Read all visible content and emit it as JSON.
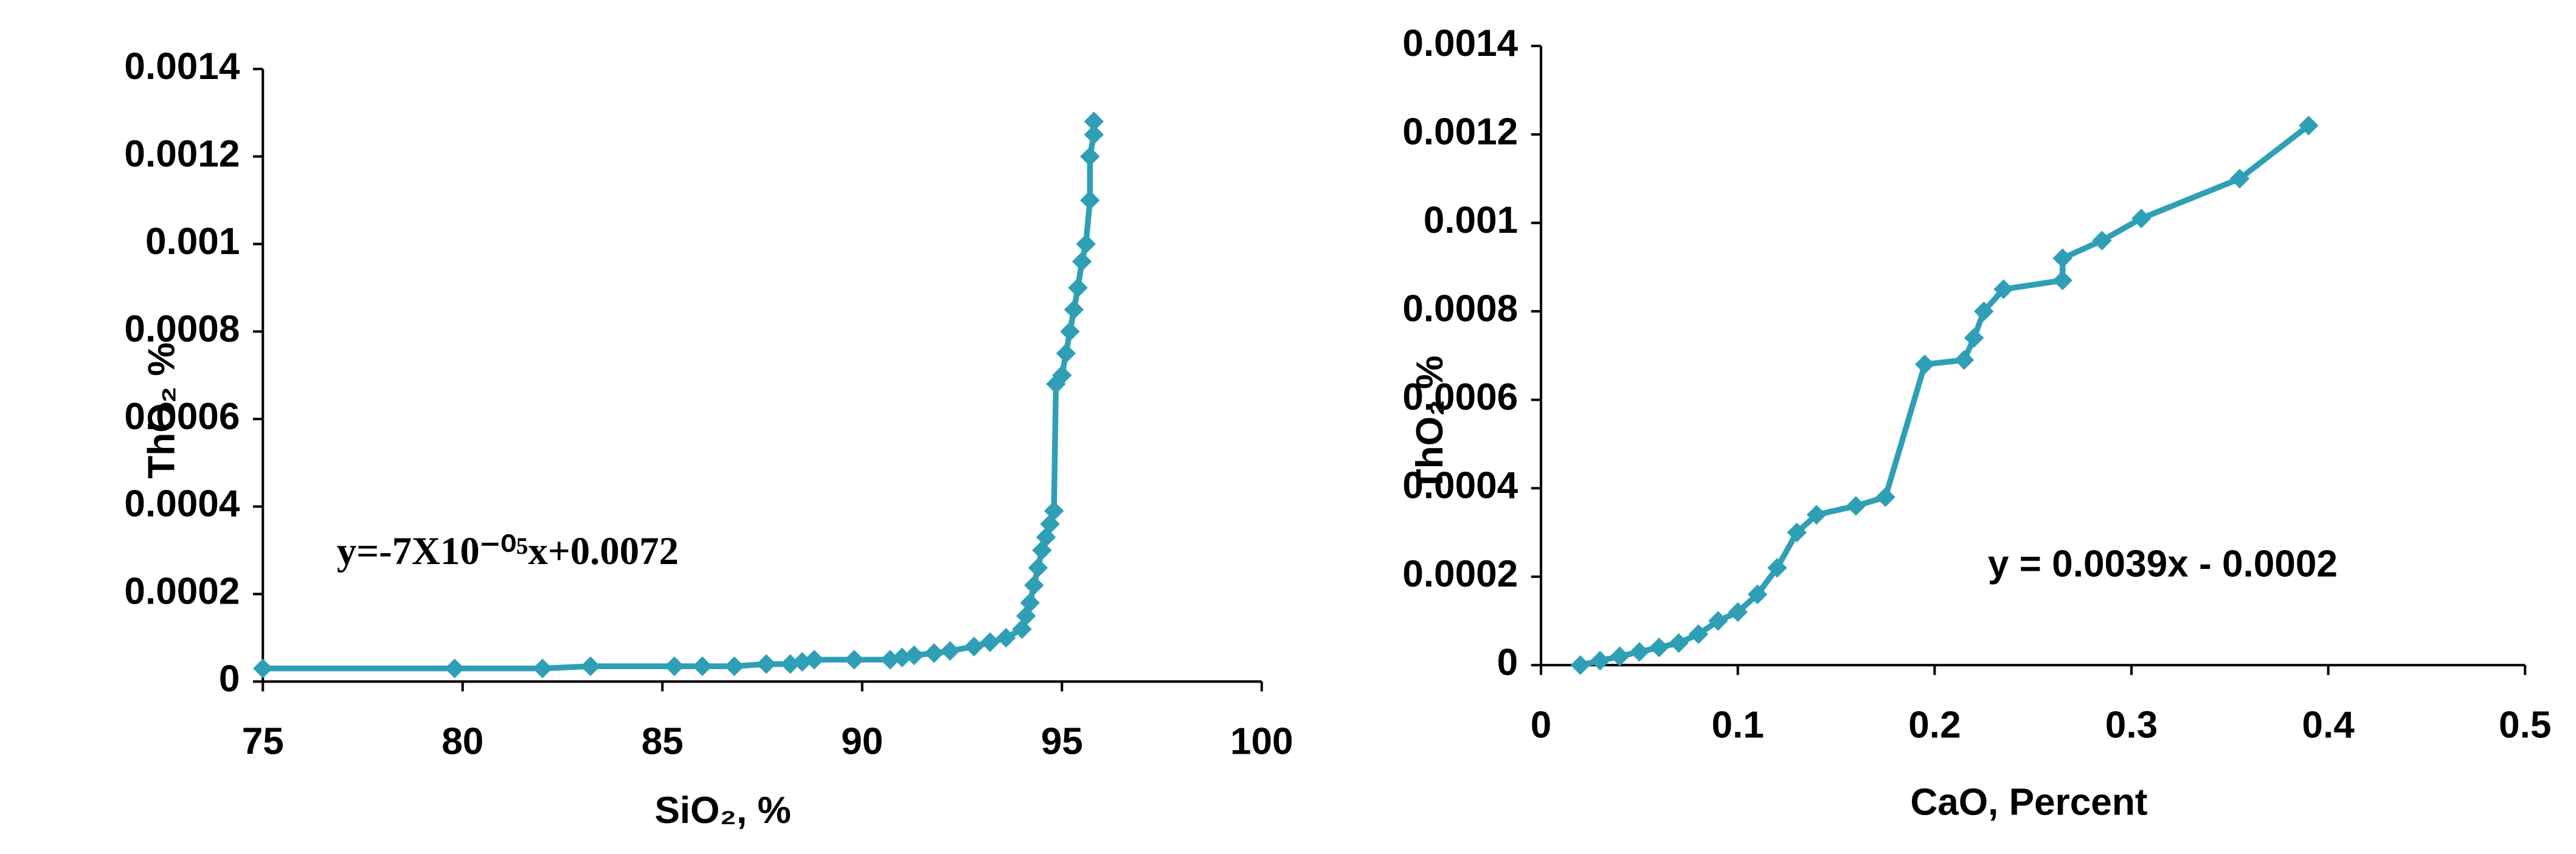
{
  "chart_data": [
    {
      "type": "line",
      "xlabel": "SiO₂, %",
      "ylabel": "ThO₂ %",
      "annotation": "y=-7X10⁻⁰⁵x+0.0072",
      "color": "#2f9fb6",
      "x": [
        75,
        79.8,
        82,
        83.2,
        85.3,
        86,
        86.8,
        87.6,
        88.2,
        88.5,
        88.8,
        89.8,
        90.7,
        91,
        91.3,
        91.8,
        92.2,
        92.8,
        93.2,
        93.6,
        94,
        94.1,
        94.2,
        94.3,
        94.4,
        94.5,
        94.6,
        94.7,
        94.8,
        94.85,
        95,
        95.1,
        95.2,
        95.3,
        95.4,
        95.5,
        95.6,
        95.7,
        95.7,
        95.8,
        95.8
      ],
      "values": [
        3e-05,
        3e-05,
        3e-05,
        3.5e-05,
        3.5e-05,
        3.5e-05,
        3.5e-05,
        4e-05,
        4e-05,
        4.5e-05,
        5e-05,
        5e-05,
        5e-05,
        5.5e-05,
        6e-05,
        6.5e-05,
        7e-05,
        8e-05,
        9e-05,
        0.0001,
        0.00012,
        0.00015,
        0.00018,
        0.00022,
        0.00026,
        0.0003,
        0.00033,
        0.00036,
        0.00039,
        0.00068,
        0.0007,
        0.00075,
        0.0008,
        0.00085,
        0.0009,
        0.00096,
        0.001,
        0.0011,
        0.0012,
        0.00125,
        0.00128
      ],
      "xlim": [
        75,
        100
      ],
      "xticks": [
        75,
        80,
        85,
        90,
        95,
        100
      ],
      "ylim": [
        0,
        0.0014
      ],
      "yticks": [
        0,
        0.0002,
        0.0004,
        0.0006,
        0.0008,
        0.001,
        0.0012,
        0.0014
      ],
      "grid": false
    },
    {
      "type": "line",
      "xlabel": "CaO, Percent",
      "ylabel": "ThO₂ %",
      "annotation": "y = 0.0039x - 0.0002",
      "color": "#2f9fb6",
      "x": [
        0.02,
        0.03,
        0.04,
        0.05,
        0.06,
        0.07,
        0.08,
        0.09,
        0.1,
        0.11,
        0.12,
        0.13,
        0.14,
        0.16,
        0.175,
        0.195,
        0.215,
        0.22,
        0.225,
        0.235,
        0.265,
        0.265,
        0.285,
        0.305,
        0.355,
        0.39
      ],
      "values": [
        0,
        1e-05,
        2e-05,
        3e-05,
        4e-05,
        5e-05,
        7e-05,
        0.0001,
        0.00012,
        0.00016,
        0.00022,
        0.0003,
        0.00034,
        0.00036,
        0.00038,
        0.00068,
        0.00069,
        0.00074,
        0.0008,
        0.00085,
        0.00087,
        0.00092,
        0.00096,
        0.00101,
        0.0011,
        0.00122
      ],
      "xlim": [
        0,
        0.5
      ],
      "xticks": [
        0,
        0.1,
        0.2,
        0.3,
        0.4,
        0.5
      ],
      "ylim": [
        0,
        0.0014
      ],
      "yticks": [
        0,
        0.0002,
        0.0004,
        0.0006,
        0.0008,
        0.001,
        0.0012,
        0.0014
      ],
      "grid": false
    }
  ]
}
